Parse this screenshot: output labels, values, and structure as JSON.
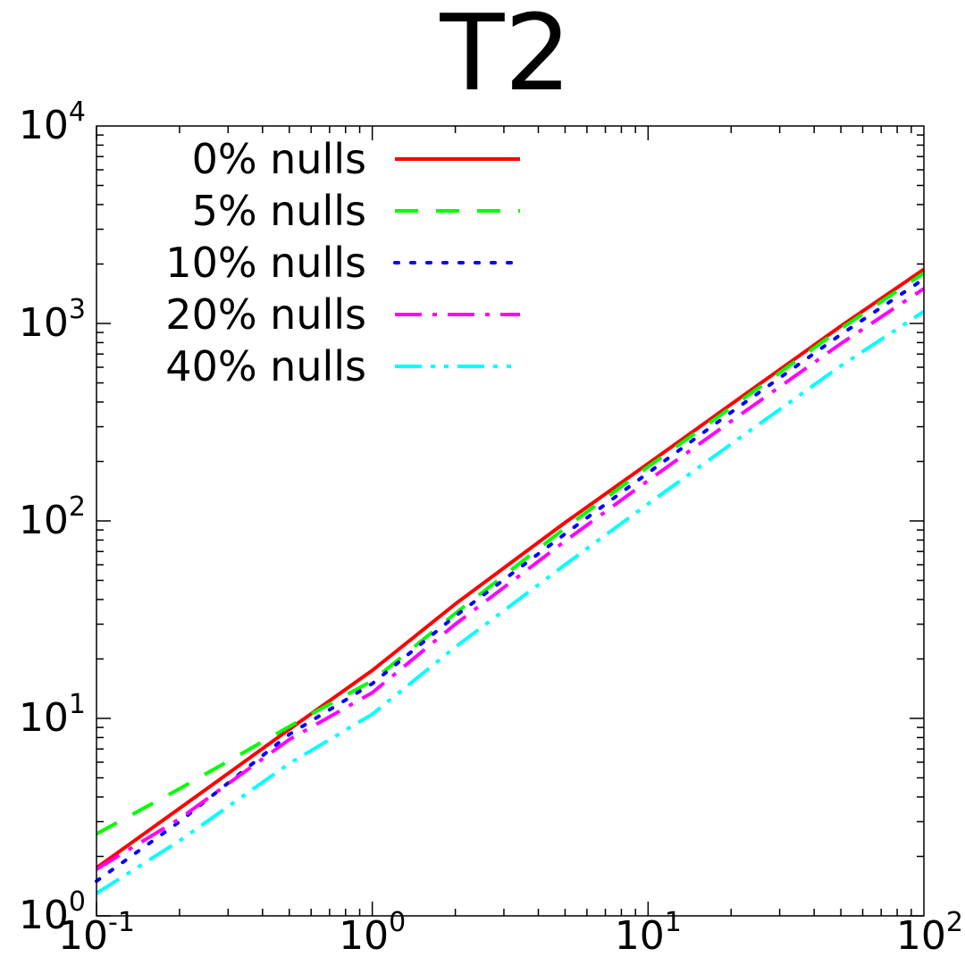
{
  "chart_data": {
    "type": "line",
    "title": "T2",
    "xlabel": "",
    "ylabel": "",
    "x_scale": "log",
    "y_scale": "log",
    "xlim": [
      0.1,
      100
    ],
    "ylim": [
      1,
      10000
    ],
    "x_ticks": [
      {
        "base": "10",
        "exp": "-1",
        "value": 0.1
      },
      {
        "base": "10",
        "exp": "0",
        "value": 1
      },
      {
        "base": "10",
        "exp": "1",
        "value": 10
      },
      {
        "base": "10",
        "exp": "2",
        "value": 100
      }
    ],
    "y_ticks": [
      {
        "base": "10",
        "exp": "0",
        "value": 1
      },
      {
        "base": "10",
        "exp": "1",
        "value": 10
      },
      {
        "base": "10",
        "exp": "2",
        "value": 100
      },
      {
        "base": "10",
        "exp": "3",
        "value": 1000
      },
      {
        "base": "10",
        "exp": "4",
        "value": 10000
      }
    ],
    "grid": false,
    "legend_position": "top-left",
    "series": [
      {
        "name": "0% nulls",
        "color": "#ff0000",
        "dash": "solid",
        "points": [
          [
            0.1,
            1.75
          ],
          [
            0.2,
            3.5
          ],
          [
            0.5,
            8.8
          ],
          [
            1,
            17.5
          ],
          [
            2,
            38
          ],
          [
            5,
            98
          ],
          [
            10,
            195
          ],
          [
            20,
            390
          ],
          [
            50,
            970
          ],
          [
            100,
            1880
          ]
        ]
      },
      {
        "name": "5% nulls",
        "color": "#00ff00",
        "dash": "dashed",
        "points": [
          [
            0.1,
            2.6
          ],
          [
            0.2,
            4.4
          ],
          [
            0.6,
            10.5
          ],
          [
            1,
            15.5
          ],
          [
            2,
            34
          ],
          [
            5,
            92
          ],
          [
            10,
            188
          ],
          [
            20,
            375
          ],
          [
            50,
            940
          ],
          [
            100,
            1800
          ]
        ]
      },
      {
        "name": "10% nulls",
        "color": "#0000ff",
        "dash": "dotted",
        "points": [
          [
            0.1,
            1.5
          ],
          [
            0.2,
            3.0
          ],
          [
            0.5,
            8.3
          ],
          [
            1,
            15.0
          ],
          [
            2,
            33
          ],
          [
            5,
            86
          ],
          [
            10,
            175
          ],
          [
            20,
            355
          ],
          [
            50,
            880
          ],
          [
            100,
            1680
          ]
        ]
      },
      {
        "name": "20% nulls",
        "color": "#ff00ff",
        "dash": "dash-dot",
        "points": [
          [
            0.1,
            1.72
          ],
          [
            0.2,
            3.1
          ],
          [
            0.5,
            7.8
          ],
          [
            1,
            13.5
          ],
          [
            2,
            30
          ],
          [
            5,
            79
          ],
          [
            10,
            160
          ],
          [
            20,
            320
          ],
          [
            50,
            790
          ],
          [
            100,
            1500
          ]
        ]
      },
      {
        "name": "40% nulls",
        "color": "#00ffff",
        "dash": "dash-dot-dot",
        "points": [
          [
            0.1,
            1.3
          ],
          [
            0.2,
            2.4
          ],
          [
            0.5,
            5.9
          ],
          [
            1,
            10.5
          ],
          [
            2,
            23
          ],
          [
            5,
            60
          ],
          [
            10,
            122
          ],
          [
            20,
            245
          ],
          [
            50,
            610
          ],
          [
            100,
            1150
          ]
        ]
      }
    ]
  }
}
